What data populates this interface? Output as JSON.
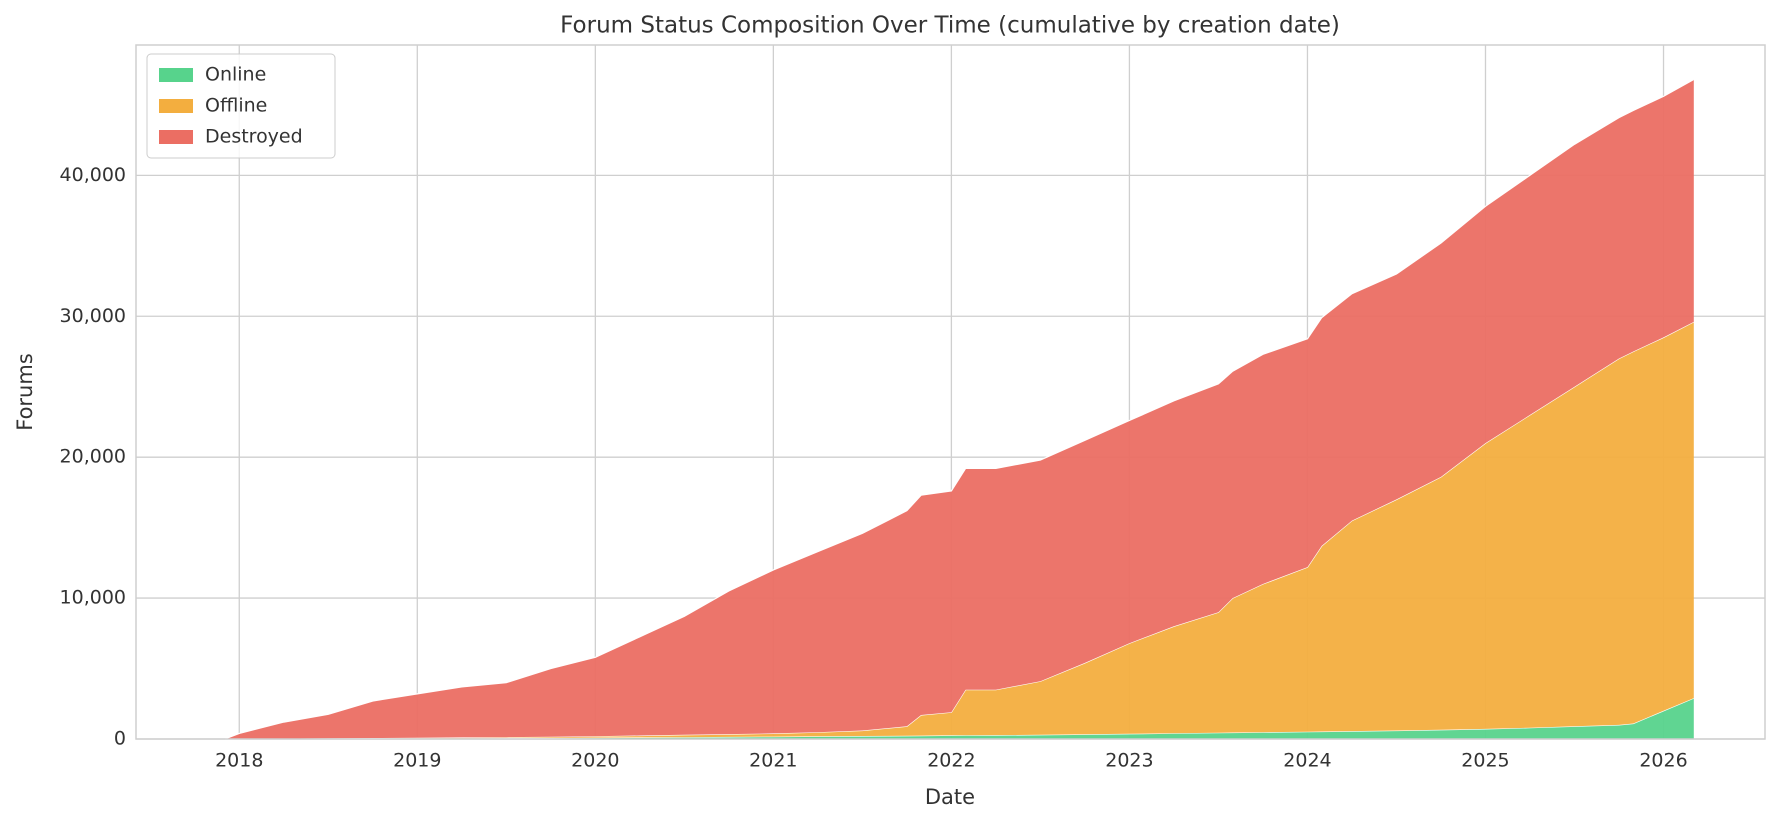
{
  "chart_data": {
    "type": "stacked_area",
    "title": "Forum Status Composition Over Time (cumulative by creation date)",
    "x_label": "Date",
    "y_label": "Forums",
    "x": [
      2017.92,
      2018.0,
      2018.25,
      2018.5,
      2018.75,
      2019.0,
      2019.25,
      2019.5,
      2019.75,
      2020.0,
      2020.25,
      2020.5,
      2020.75,
      2021.0,
      2021.25,
      2021.5,
      2021.75,
      2021.83,
      2022.0,
      2022.08,
      2022.25,
      2022.5,
      2022.75,
      2023.0,
      2023.25,
      2023.5,
      2023.58,
      2023.75,
      2024.0,
      2024.08,
      2024.25,
      2024.5,
      2024.75,
      2025.0,
      2025.25,
      2025.5,
      2025.75,
      2025.83,
      2026.0,
      2026.17
    ],
    "series": [
      {
        "name": "Online",
        "color": "#57d38c",
        "values": [
          0,
          0,
          20,
          30,
          40,
          50,
          60,
          70,
          80,
          100,
          110,
          130,
          150,
          170,
          190,
          210,
          230,
          240,
          260,
          270,
          280,
          300,
          330,
          370,
          410,
          450,
          460,
          480,
          520,
          530,
          560,
          600,
          650,
          720,
          800,
          900,
          1000,
          1100,
          2000,
          2900
        ]
      },
      {
        "name": "Offline",
        "color": "#f3ae3f",
        "values": [
          0,
          0,
          10,
          20,
          30,
          40,
          50,
          60,
          80,
          100,
          140,
          170,
          200,
          230,
          290,
          390,
          670,
          1460,
          1640,
          3230,
          3220,
          3800,
          5070,
          6430,
          7590,
          8550,
          9540,
          10520,
          11680,
          13170,
          14940,
          16400,
          17950,
          20280,
          22200,
          24100,
          26000,
          26400,
          26500,
          26700
        ]
      },
      {
        "name": "Destroyed",
        "color": "#eb6e63",
        "values": [
          0,
          400,
          1170,
          1700,
          2630,
          3110,
          3590,
          3870,
          4840,
          5600,
          7000,
          8400,
          10150,
          11600,
          12820,
          14000,
          15300,
          15600,
          15700,
          15700,
          15700,
          15700,
          15800,
          15800,
          16000,
          16200,
          16100,
          16300,
          16200,
          16200,
          16100,
          16000,
          16600,
          16800,
          17000,
          17200,
          17100,
          17100,
          17100,
          17200
        ]
      }
    ],
    "xlim": [
      2017.42,
      2026.57
    ],
    "xticks": [
      2018,
      2019,
      2020,
      2021,
      2022,
      2023,
      2024,
      2025,
      2026
    ],
    "ylim": [
      0,
      49250
    ],
    "yticks": [
      0,
      {
        "value": 10000,
        "label": "10,000"
      },
      {
        "value": 20000,
        "label": "20,000"
      },
      {
        "value": 30000,
        "label": "30,000"
      },
      {
        "value": 40000,
        "label": "40,000"
      }
    ],
    "grid": true,
    "legend": "upper-left"
  }
}
